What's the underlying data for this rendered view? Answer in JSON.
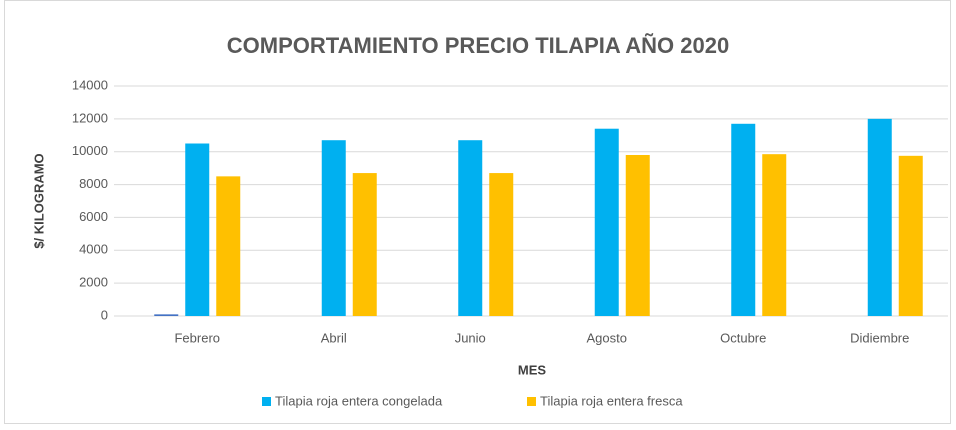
{
  "chart_data": {
    "type": "bar",
    "title": "COMPORTAMIENTO PRECIO TILAPIA AÑO 2020",
    "x_label": "MES",
    "y_label": "$/ KILOGRAMO",
    "categories": [
      "Febrero",
      "Abril",
      "Junio",
      "Agosto",
      "Octubre",
      "Didiembre"
    ],
    "series": [
      {
        "color": "#4472c4",
        "values": [
          100,
          null,
          null,
          null,
          null,
          null
        ]
      },
      {
        "name": "Tilapia roja entera congelada",
        "color": "#00b0f0",
        "values": [
          10500,
          10700,
          10700,
          11400,
          11700,
          12000
        ]
      },
      {
        "name": "Tilapia roja entera fresca",
        "color": "#ffc000",
        "values": [
          8500,
          8700,
          8700,
          9800,
          9850,
          9750
        ]
      }
    ],
    "ylim": [
      0,
      14000
    ],
    "yticks": [
      0,
      2000,
      4000,
      6000,
      8000,
      10000,
      12000,
      14000
    ],
    "grid": true,
    "legend": "bottom"
  }
}
